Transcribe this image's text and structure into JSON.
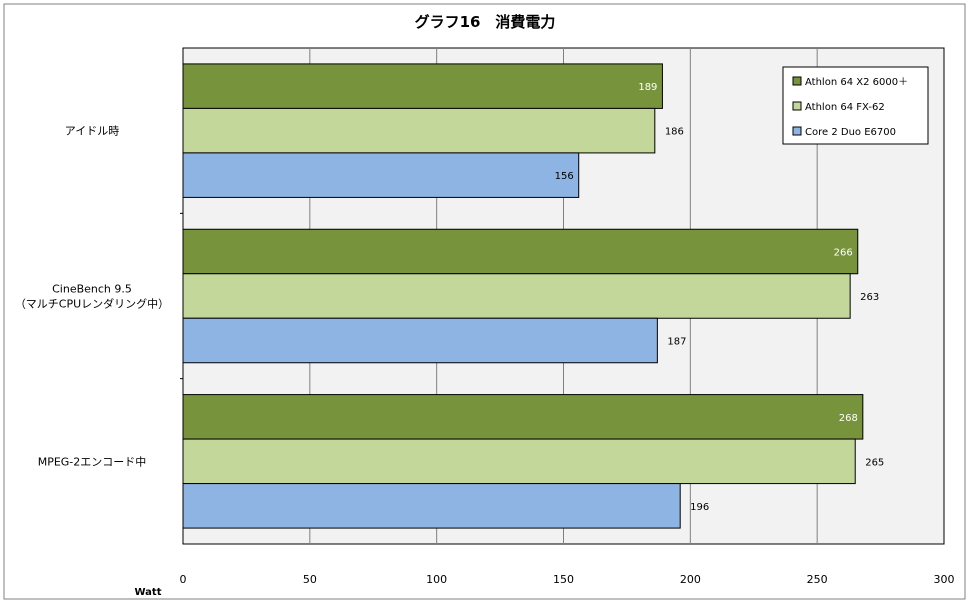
{
  "chart_data": {
    "type": "bar",
    "orientation": "horizontal",
    "title": "グラフ16　消費電力",
    "xlabel": "Watt",
    "ylabel": "",
    "categories": [
      "アイドル時",
      "CineBench 9.5\n（マルチCPUレンダリング中）",
      "MPEG-2エンコード中"
    ],
    "series": [
      {
        "name": "Athlon 64 X2 6000＋",
        "values": [
          189,
          266,
          268
        ],
        "color": "#77933c",
        "label_color": "#ffffff"
      },
      {
        "name": "Athlon 64 FX-62",
        "values": [
          186,
          263,
          265
        ],
        "color": "#c4d79b",
        "label_color": "#000000"
      },
      {
        "name": "Core 2 Duo E6700",
        "values": [
          156,
          187,
          196
        ],
        "color": "#8eb4e3",
        "label_color": "#000000"
      }
    ],
    "xlim": [
      0,
      300
    ],
    "xticks": [
      0,
      50,
      100,
      150,
      200,
      250,
      300
    ],
    "grid": true,
    "legend_position": "top-right",
    "plot_background": "#f2f2f2",
    "border_color": "#000000"
  }
}
